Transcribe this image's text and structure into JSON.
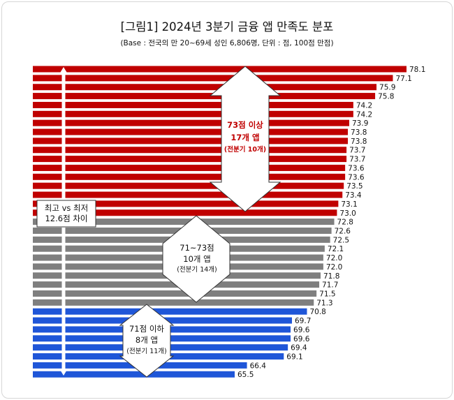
{
  "chart_data": {
    "type": "bar",
    "orientation": "horizontal",
    "title": "[그림1] 2024년 3분기 금융 앱 만족도 분포",
    "subtitle": "(Base : 전국의 만 20~69세 성인 6,806명, 단위 :  점, 100점 만점)",
    "values": [
      78.1,
      77.1,
      75.9,
      75.8,
      74.2,
      74.2,
      73.9,
      73.8,
      73.8,
      73.7,
      73.7,
      73.6,
      73.6,
      73.5,
      73.4,
      73.1,
      73.0,
      72.8,
      72.6,
      72.5,
      72.1,
      72.0,
      72.0,
      71.8,
      71.7,
      71.5,
      71.3,
      70.8,
      69.7,
      69.6,
      69.6,
      69.4,
      69.1,
      66.4,
      65.5
    ],
    "value_labels": [
      "78.1",
      "77.1",
      "75.9",
      "75.8",
      "74.2",
      "74.2",
      "73.9",
      "73.8",
      "73.8",
      "73.7",
      "73.7",
      "73.6",
      "73.6",
      "73.5",
      "73.4",
      "73.1",
      "73.0",
      "72.8",
      "72.6",
      "72.5",
      "72.1",
      "72.0",
      "72.0",
      "71.8",
      "71.7",
      "71.5",
      "71.3",
      "70.8",
      "69.7",
      "69.6",
      "69.6",
      "69.4",
      "69.1",
      "66.4",
      "65.5"
    ],
    "groups": [
      {
        "count": 17,
        "color": "#c00000"
      },
      {
        "count": 10,
        "color": "#7f7f7f"
      },
      {
        "count": 8,
        "color": "#1f56d8"
      }
    ],
    "annotations": {
      "range_note": [
        "최고 vs 최저",
        "12.6점 차이"
      ],
      "top_group": [
        "73점 이상",
        "17개 앱",
        "(전분기 10개)"
      ],
      "mid_group": [
        "71~73점",
        "10개 앱",
        "(전분기 14개)"
      ],
      "low_group": [
        "71점 이하",
        "8개 앱",
        "(전분기 11개)"
      ]
    }
  }
}
